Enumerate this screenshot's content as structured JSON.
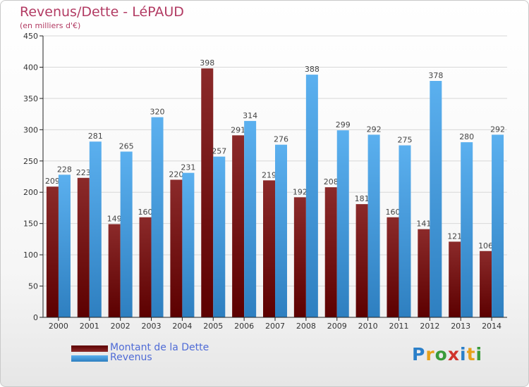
{
  "header": {
    "title": "Revenus/Dette - LéPAUD",
    "subtitle": "(en milliers d'€)"
  },
  "colors": {
    "dette_dark": "#5c0000",
    "dette_light": "#8b2a2a",
    "revenus_dark": "#2e7fc0",
    "revenus_light": "#5bb0ef",
    "axis": "#222222",
    "grid": "#d8d8d8"
  },
  "chart_data": {
    "type": "bar",
    "title": "Revenus/Dette - LéPAUD",
    "subtitle": "(en milliers d'€)",
    "xlabel": "",
    "ylabel": "",
    "categories": [
      "2000",
      "2001",
      "2002",
      "2003",
      "2004",
      "2005",
      "2006",
      "2007",
      "2008",
      "2009",
      "2010",
      "2011",
      "2012",
      "2013",
      "2014"
    ],
    "series": [
      {
        "name": "Montant de la Dette",
        "values": [
          209,
          223,
          149,
          160,
          220,
          398,
          291,
          219,
          192,
          208,
          181,
          160,
          141,
          121,
          106
        ]
      },
      {
        "name": "Revenus",
        "values": [
          228,
          281,
          265,
          320,
          231,
          257,
          314,
          276,
          388,
          299,
          292,
          275,
          378,
          280,
          292
        ]
      }
    ],
    "ylim": [
      0,
      450
    ],
    "yticks": [
      0,
      50,
      100,
      150,
      200,
      250,
      300,
      350,
      400,
      450
    ],
    "grid": "horizontal",
    "legend_placement": "bottom-left"
  },
  "legend": {
    "items": [
      {
        "label": "Montant de la Dette"
      },
      {
        "label": "Revenus"
      }
    ]
  },
  "logo": {
    "text": "Proxiti",
    "letter_colors": [
      "#2a7fc9",
      "#e6a11b",
      "#3a9b3a",
      "#d0342c",
      "#2a7fc9",
      "#e6a11b",
      "#3a9b3a"
    ]
  }
}
